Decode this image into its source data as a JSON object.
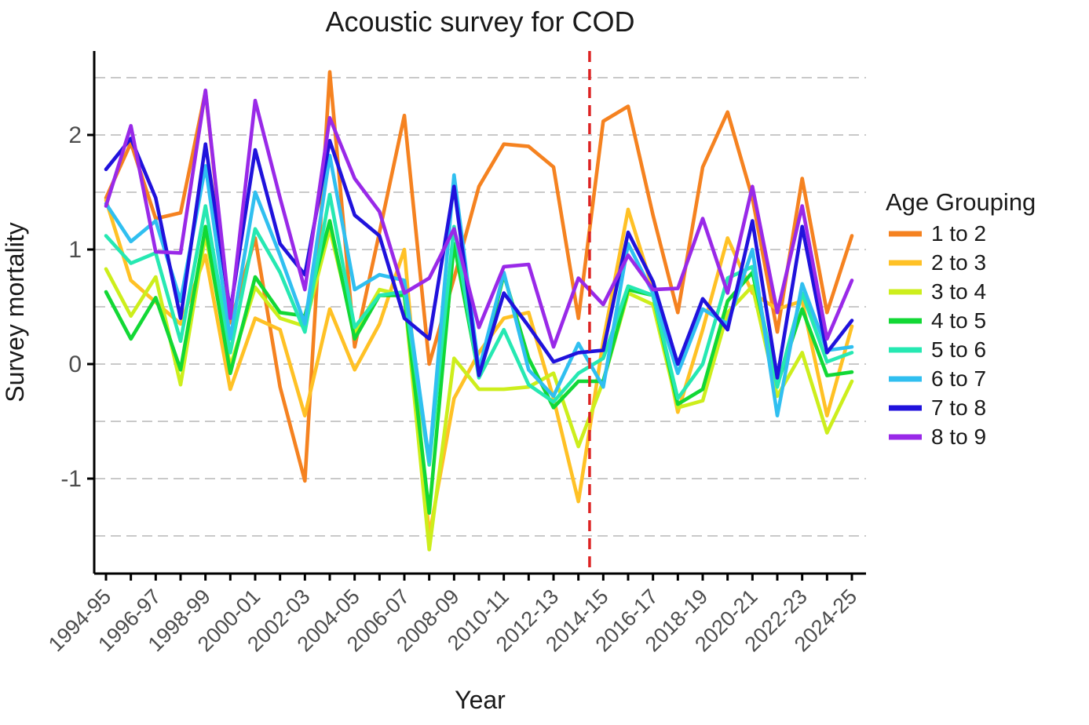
{
  "title": "Acoustic survey for COD",
  "axes": {
    "xlabel": "Year",
    "ylabel": "Survey mortality"
  },
  "legend": {
    "title": "Age Grouping",
    "position": "right"
  },
  "annotation_line": {
    "label": "dashed-red-vline",
    "color": "#DD2222",
    "x_index": 19.45
  },
  "palette": {
    "axis": "#000000",
    "grid": "#C9C9C9",
    "tick_text": "#4D4D4D",
    "title_text": "#1A1A1A"
  },
  "chart_data": {
    "type": "line",
    "title": "Acoustic survey for COD",
    "xlabel": "Year",
    "ylabel": "Survey mortality",
    "legend_title": "Age Grouping",
    "legend_position": "right",
    "grid": "dashed-horizontal",
    "ylim": [
      -1.8,
      2.7
    ],
    "y_ticks": [
      2,
      1,
      0,
      -1
    ],
    "grid_values": [
      2.5,
      2,
      1.5,
      1,
      0.5,
      0,
      -0.5,
      -1,
      -1.5
    ],
    "categories": [
      "1994-95",
      "1995-96",
      "1996-97",
      "1997-98",
      "1998-99",
      "1999-00",
      "2000-01",
      "2001-02",
      "2002-03",
      "2003-04",
      "2004-05",
      "2005-06",
      "2006-07",
      "2007-08",
      "2008-09",
      "2009-10",
      "2010-11",
      "2011-12",
      "2012-13",
      "2013-14",
      "2014-15",
      "2015-16",
      "2016-17",
      "2017-18",
      "2018-19",
      "2019-20",
      "2020-21",
      "2021-22",
      "2022-23",
      "2023-24",
      "2024-25"
    ],
    "labeled_every": 2,
    "vline": {
      "x_index": 19.45,
      "color": "#DD2222",
      "dash": "dashed"
    },
    "series": [
      {
        "name": "1 to 2",
        "color": "#F58220",
        "values": [
          1.45,
          1.93,
          1.27,
          1.32,
          2.38,
          0.36,
          1.1,
          -0.2,
          -1.02,
          2.55,
          0.15,
          1.15,
          2.17,
          0.0,
          0.75,
          1.55,
          1.92,
          1.9,
          1.72,
          0.4,
          2.12,
          2.25,
          1.3,
          0.45,
          1.72,
          2.2,
          1.45,
          0.28,
          1.62,
          0.45,
          1.12
        ]
      },
      {
        "name": "2 to 3",
        "color": "#FFC125",
        "values": [
          1.43,
          0.73,
          0.54,
          0.35,
          0.95,
          -0.22,
          0.4,
          0.3,
          -0.45,
          0.48,
          -0.05,
          0.35,
          1.0,
          -1.5,
          -0.3,
          0.1,
          0.4,
          0.45,
          -0.3,
          -1.2,
          0.2,
          1.35,
          0.65,
          -0.42,
          0.3,
          1.1,
          0.62,
          0.48,
          0.55,
          -0.45,
          0.33
        ]
      },
      {
        "name": "3 to 4",
        "color": "#CDEE1C",
        "values": [
          0.83,
          0.42,
          0.76,
          -0.18,
          1.13,
          -0.02,
          0.67,
          0.4,
          0.33,
          1.18,
          0.27,
          0.65,
          0.6,
          -1.62,
          0.05,
          -0.22,
          -0.22,
          -0.2,
          -0.08,
          -0.72,
          -0.15,
          0.62,
          0.52,
          -0.38,
          -0.32,
          0.45,
          0.68,
          -0.28,
          0.1,
          -0.6,
          -0.15
        ]
      },
      {
        "name": "4 to 5",
        "color": "#12D835",
        "values": [
          0.63,
          0.22,
          0.58,
          -0.05,
          1.2,
          -0.08,
          0.76,
          0.45,
          0.42,
          1.25,
          0.22,
          0.6,
          0.6,
          -1.3,
          1.05,
          -0.1,
          0.78,
          0.05,
          -0.38,
          -0.15,
          -0.15,
          0.65,
          0.6,
          -0.35,
          -0.22,
          0.55,
          0.8,
          -0.18,
          0.48,
          -0.1,
          -0.07
        ]
      },
      {
        "name": "5 to 6",
        "color": "#26E8B2",
        "values": [
          1.12,
          0.88,
          0.97,
          0.2,
          1.38,
          0.1,
          1.18,
          0.8,
          0.28,
          1.48,
          0.32,
          0.6,
          0.63,
          -0.88,
          1.2,
          -0.12,
          0.3,
          -0.18,
          -0.33,
          -0.08,
          0.05,
          0.68,
          0.6,
          -0.3,
          0.0,
          0.75,
          0.85,
          -0.2,
          0.62,
          0.02,
          0.1
        ]
      },
      {
        "name": "6 to 7",
        "color": "#30BFF0",
        "values": [
          1.4,
          1.07,
          1.25,
          0.55,
          1.73,
          0.22,
          1.5,
          0.95,
          0.35,
          1.82,
          0.65,
          0.78,
          0.73,
          -0.85,
          1.65,
          -0.05,
          0.8,
          -0.05,
          -0.28,
          0.18,
          -0.2,
          1.05,
          0.62,
          -0.08,
          0.48,
          0.35,
          1.0,
          -0.45,
          0.7,
          0.12,
          0.15
        ]
      },
      {
        "name": "7 to 8",
        "color": "#2012DC",
        "values": [
          1.7,
          1.97,
          1.45,
          0.4,
          1.92,
          0.46,
          1.87,
          1.05,
          0.78,
          1.95,
          1.3,
          1.12,
          0.4,
          0.22,
          1.55,
          -0.1,
          0.62,
          0.33,
          0.02,
          0.1,
          0.12,
          1.15,
          0.72,
          0.0,
          0.57,
          0.3,
          1.25,
          -0.12,
          1.2,
          0.1,
          0.38
        ]
      },
      {
        "name": "8 to 9",
        "color": "#9929E8",
        "values": [
          1.38,
          2.08,
          0.98,
          0.97,
          2.39,
          0.4,
          2.3,
          1.45,
          0.65,
          2.15,
          1.62,
          1.33,
          0.62,
          0.75,
          1.18,
          0.32,
          0.85,
          0.87,
          0.15,
          0.75,
          0.52,
          0.95,
          0.65,
          0.66,
          1.27,
          0.62,
          1.55,
          0.45,
          1.38,
          0.22,
          0.73
        ]
      }
    ]
  }
}
